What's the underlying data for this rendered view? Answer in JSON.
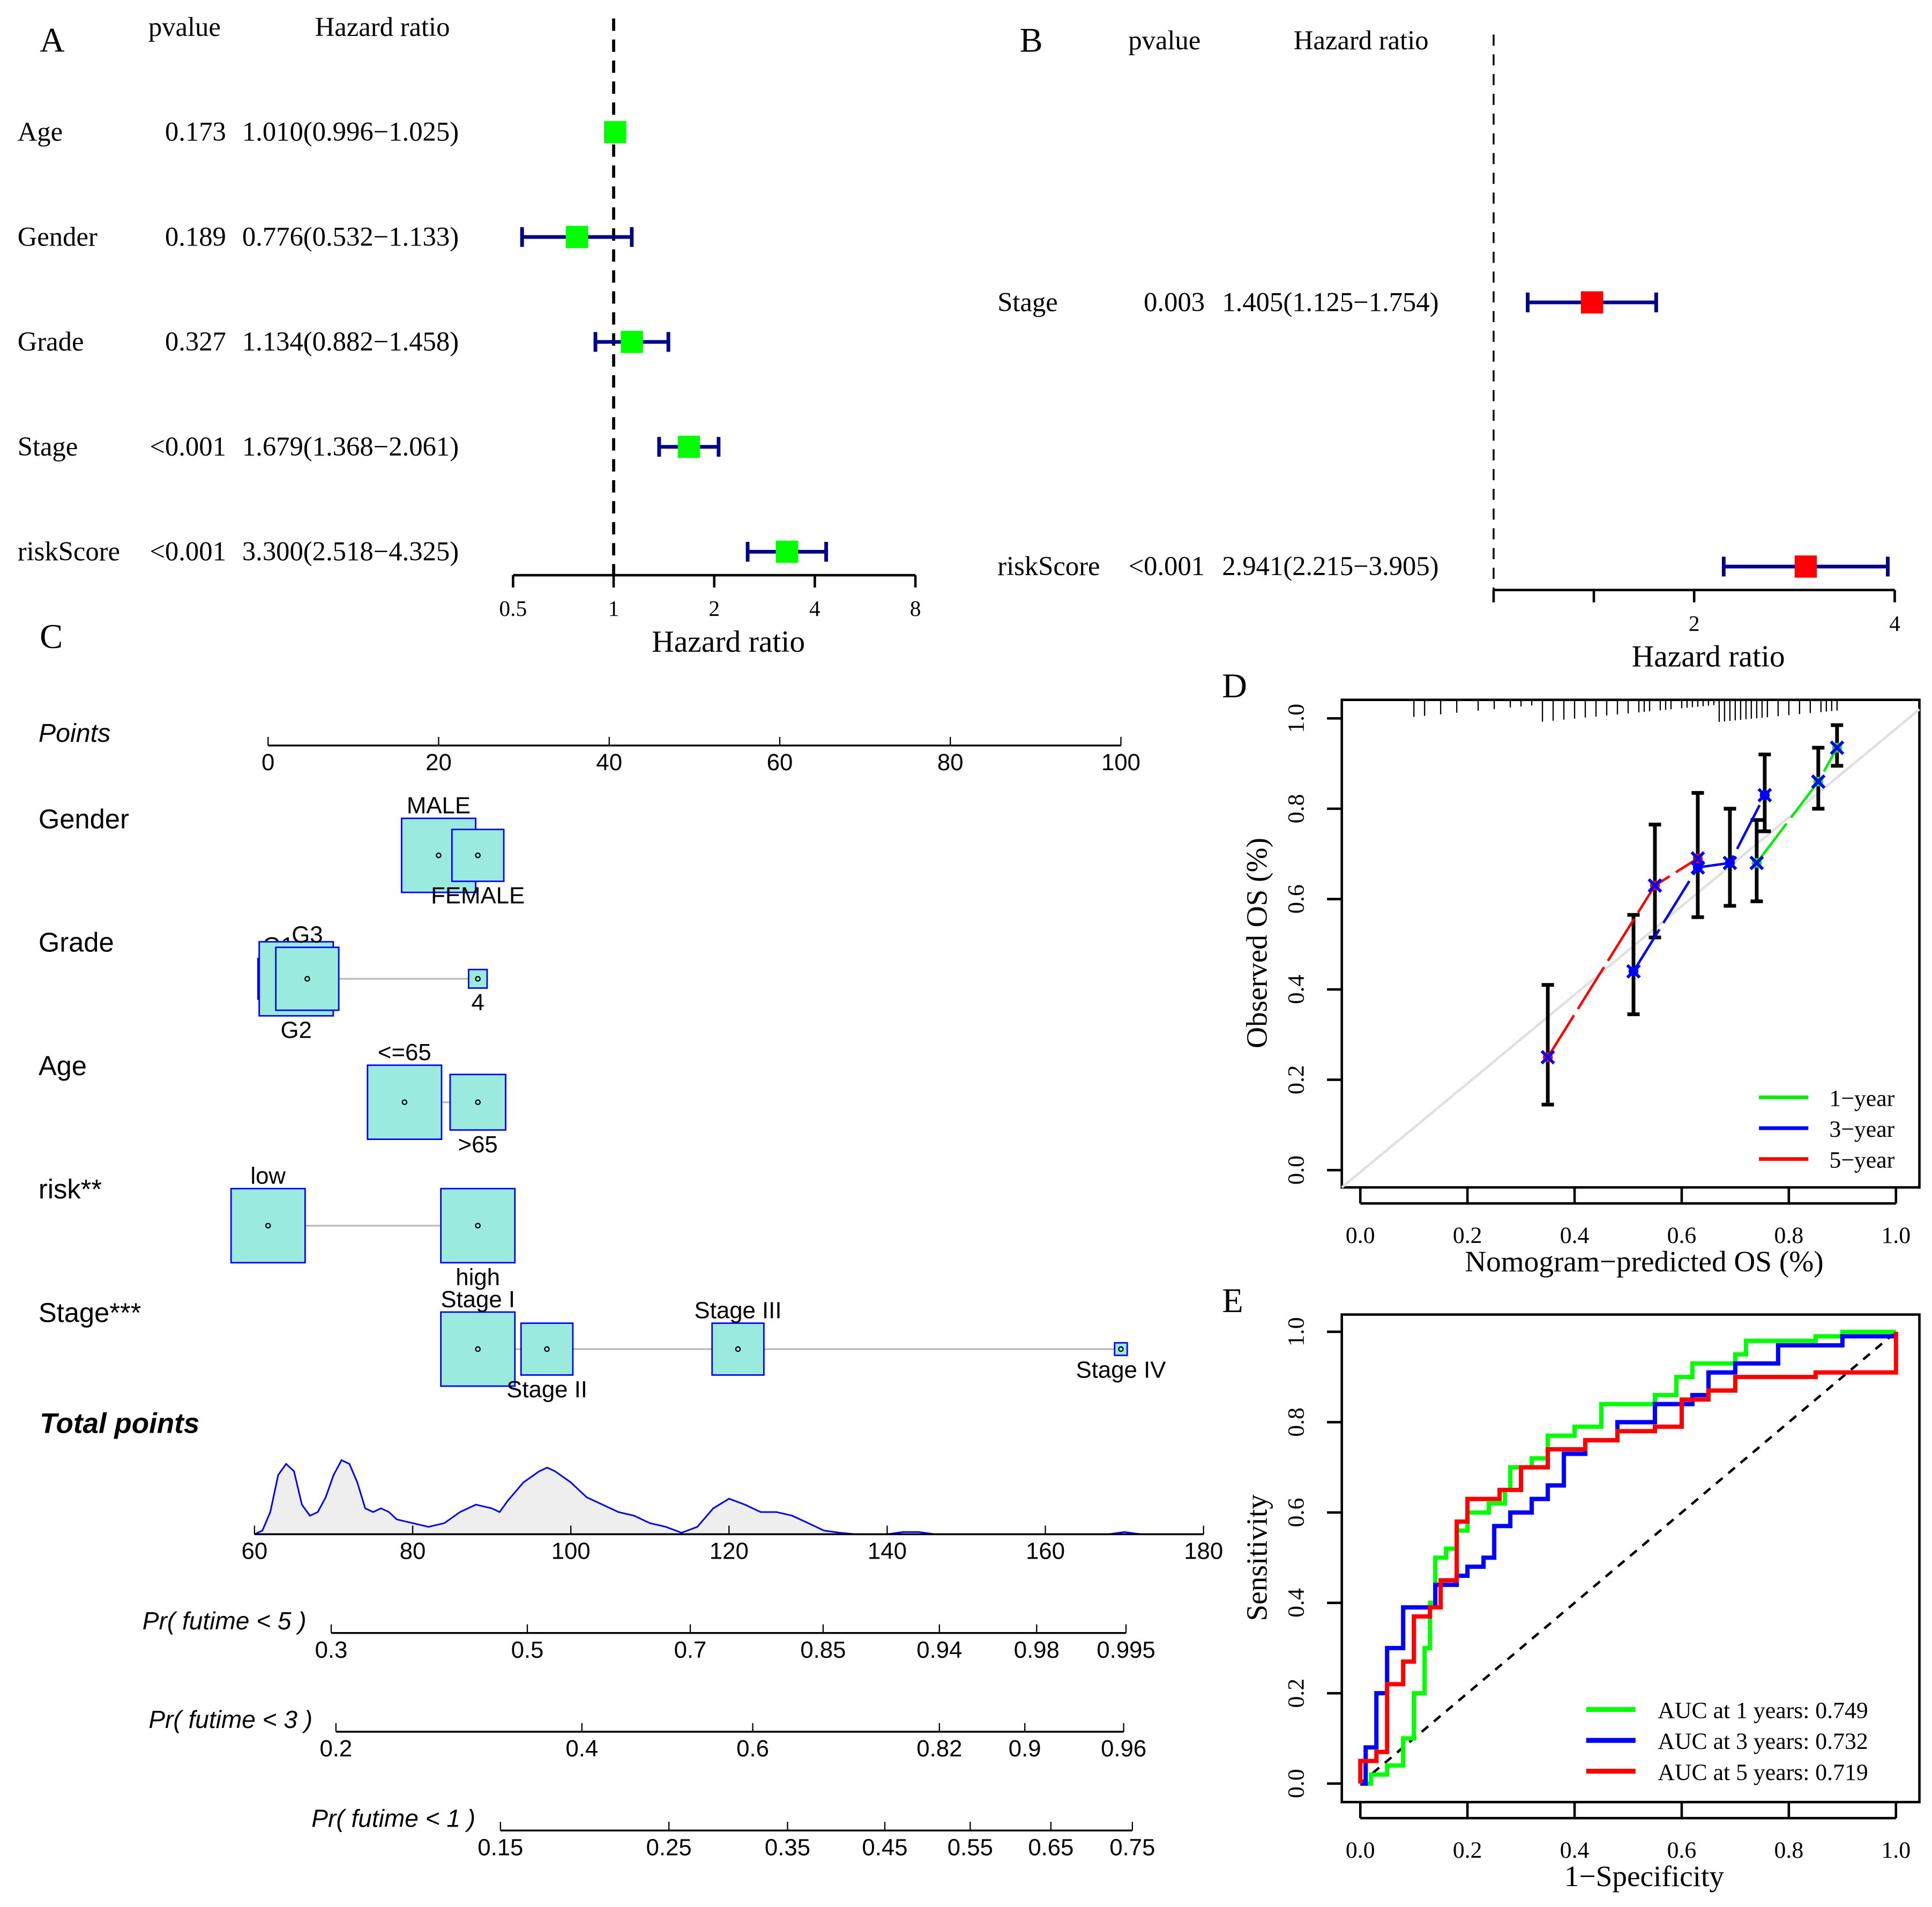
{
  "chart_data": [
    {
      "panel": "A",
      "type": "forest",
      "panel_label": "A",
      "col_headers": [
        "pvalue",
        "Hazard ratio"
      ],
      "xlabel": "Hazard ratio",
      "xscale": "log2",
      "xticks": [
        0.5,
        1,
        2,
        4,
        8
      ],
      "xtick_labels": [
        "0.5",
        "1",
        "2",
        "4",
        "8"
      ],
      "ref_line": 1,
      "marker_color": "#00ff00",
      "ci_color": "#00008b",
      "rows": [
        {
          "label": "Age",
          "pvalue": "0.173",
          "hr_text": "1.010(0.996−1.025)",
          "hr": 1.01,
          "lo": 0.996,
          "hi": 1.025
        },
        {
          "label": "Gender",
          "pvalue": "0.189",
          "hr_text": "0.776(0.532−1.133)",
          "hr": 0.776,
          "lo": 0.532,
          "hi": 1.133
        },
        {
          "label": "Grade",
          "pvalue": "0.327",
          "hr_text": "1.134(0.882−1.458)",
          "hr": 1.134,
          "lo": 0.882,
          "hi": 1.458
        },
        {
          "label": "Stage",
          "pvalue": "<0.001",
          "hr_text": "1.679(1.368−2.061)",
          "hr": 1.679,
          "lo": 1.368,
          "hi": 2.061
        },
        {
          "label": "riskScore",
          "pvalue": "<0.001",
          "hr_text": "3.300(2.518−4.325)",
          "hr": 3.3,
          "lo": 2.518,
          "hi": 4.325
        }
      ]
    },
    {
      "panel": "B",
      "type": "forest",
      "panel_label": "B",
      "col_headers": [
        "pvalue",
        "Hazard ratio"
      ],
      "xlabel": "Hazard ratio",
      "xscale": "log2",
      "xticks": [
        1,
        1.414,
        2,
        4
      ],
      "xtick_labels": [
        "",
        "",
        "2",
        "4"
      ],
      "ref_line": 1,
      "marker_color": "#ff0000",
      "ci_color": "#00008b",
      "rows": [
        {
          "label": "Stage",
          "pvalue": "0.003",
          "hr_text": "1.405(1.125−1.754)",
          "hr": 1.405,
          "lo": 1.125,
          "hi": 1.754
        },
        {
          "label": "riskScore",
          "pvalue": "<0.001",
          "hr_text": "2.941(2.215−3.905)",
          "hr": 2.941,
          "lo": 2.215,
          "hi": 3.905
        }
      ]
    },
    {
      "panel": "C",
      "type": "nomogram",
      "panel_label": "C",
      "points": {
        "label": "Points",
        "range": [
          0,
          100
        ],
        "ticks": [
          0,
          20,
          40,
          60,
          80,
          100
        ]
      },
      "variables": [
        {
          "label": "Gender",
          "levels": [
            {
              "name": "MALE",
              "points": 20,
              "size": 1.0,
              "pos": "above"
            },
            {
              "name": "FEMALE",
              "points": 24.6,
              "size": 0.7,
              "pos": "below"
            }
          ]
        },
        {
          "label": "Grade",
          "levels": [
            {
              "name": "G1",
              "points": 1.2,
              "size": 0.55,
              "pos": "above"
            },
            {
              "name": "G2",
              "points": 3.3,
              "size": 1.0,
              "pos": "below"
            },
            {
              "name": "G3",
              "points": 4.6,
              "size": 0.85,
              "pos": "above"
            },
            {
              "name": "4",
              "points": 24.6,
              "size": 0.25,
              "pos": "below"
            }
          ]
        },
        {
          "label": "Age",
          "levels": [
            {
              "name": "<=65",
              "points": 16,
              "size": 1.0,
              "pos": "above"
            },
            {
              "name": ">65",
              "points": 24.6,
              "size": 0.75,
              "pos": "below"
            }
          ]
        },
        {
          "label": "risk**",
          "levels": [
            {
              "name": "low",
              "points": 0,
              "size": 1.0,
              "pos": "above"
            },
            {
              "name": "high",
              "points": 24.6,
              "size": 1.0,
              "pos": "below"
            }
          ]
        },
        {
          "label": "Stage***",
          "levels": [
            {
              "name": "Stage I",
              "points": 24.6,
              "size": 1.0,
              "pos": "above"
            },
            {
              "name": "Stage II",
              "points": 32.7,
              "size": 0.7,
              "pos": "below"
            },
            {
              "name": "Stage III",
              "points": 55.1,
              "size": 0.7,
              "pos": "above"
            },
            {
              "name": "Stage IV",
              "points": 100,
              "size": 0.17,
              "pos": "below"
            }
          ]
        }
      ],
      "total_points": {
        "label": "Total points",
        "range": [
          60,
          180
        ],
        "ticks": [
          60,
          80,
          100,
          120,
          140,
          160,
          180
        ],
        "density": [
          [
            60,
            0
          ],
          [
            61,
            0.05
          ],
          [
            62,
            0.3
          ],
          [
            63,
            0.8
          ],
          [
            64,
            0.95
          ],
          [
            65,
            0.85
          ],
          [
            66,
            0.4
          ],
          [
            67,
            0.25
          ],
          [
            68,
            0.3
          ],
          [
            69,
            0.5
          ],
          [
            70,
            0.8
          ],
          [
            71,
            1.0
          ],
          [
            72,
            0.95
          ],
          [
            73,
            0.7
          ],
          [
            74,
            0.35
          ],
          [
            75,
            0.3
          ],
          [
            76,
            0.35
          ],
          [
            77,
            0.3
          ],
          [
            78,
            0.2
          ],
          [
            80,
            0.15
          ],
          [
            82,
            0.1
          ],
          [
            84,
            0.15
          ],
          [
            86,
            0.3
          ],
          [
            88,
            0.4
          ],
          [
            90,
            0.35
          ],
          [
            91,
            0.3
          ],
          [
            92,
            0.45
          ],
          [
            94,
            0.7
          ],
          [
            96,
            0.85
          ],
          [
            97,
            0.9
          ],
          [
            98,
            0.85
          ],
          [
            100,
            0.7
          ],
          [
            102,
            0.5
          ],
          [
            104,
            0.4
          ],
          [
            106,
            0.3
          ],
          [
            108,
            0.25
          ],
          [
            110,
            0.15
          ],
          [
            112,
            0.1
          ],
          [
            114,
            0.02
          ],
          [
            116,
            0.1
          ],
          [
            118,
            0.35
          ],
          [
            120,
            0.48
          ],
          [
            122,
            0.4
          ],
          [
            124,
            0.3
          ],
          [
            126,
            0.3
          ],
          [
            128,
            0.25
          ],
          [
            130,
            0.15
          ],
          [
            132,
            0.05
          ],
          [
            134,
            0.02
          ],
          [
            136,
            0
          ],
          [
            140,
            0
          ],
          [
            142,
            0.03
          ],
          [
            144,
            0.03
          ],
          [
            146,
            0
          ],
          [
            168,
            0
          ],
          [
            170,
            0.03
          ],
          [
            172,
            0
          ],
          [
            180,
            0
          ]
        ]
      },
      "prob_scales": [
        {
          "label": "Pr( futime < 5 )",
          "ticks": [
            {
              "v": "0.3",
              "tp": 69.7
            },
            {
              "v": "0.5",
              "tp": 94.5
            },
            {
              "v": "0.7",
              "tp": 115.1
            },
            {
              "v": "0.85",
              "tp": 131.9
            },
            {
              "v": "0.94",
              "tp": 146.6
            },
            {
              "v": "0.98",
              "tp": 158.9
            },
            {
              "v": "0.995",
              "tp": 170.2
            }
          ]
        },
        {
          "label": "Pr( futime < 3 )",
          "ticks": [
            {
              "v": "0.2",
              "tp": 70.3
            },
            {
              "v": "0.4",
              "tp": 101.4
            },
            {
              "v": "0.6",
              "tp": 123.0
            },
            {
              "v": "0.82",
              "tp": 146.6
            },
            {
              "v": "0.9",
              "tp": 157.4
            },
            {
              "v": "0.96",
              "tp": 169.9
            }
          ]
        },
        {
          "label": "Pr( futime < 1 )",
          "ticks": [
            {
              "v": "0.15",
              "tp": 91.1
            },
            {
              "v": "0.25",
              "tp": 112.4
            },
            {
              "v": "0.35",
              "tp": 127.4
            },
            {
              "v": "0.45",
              "tp": 139.7
            },
            {
              "v": "0.55",
              "tp": 150.5
            },
            {
              "v": "0.65",
              "tp": 160.7
            },
            {
              "v": "0.75",
              "tp": 171.0
            }
          ]
        }
      ]
    },
    {
      "panel": "D",
      "type": "line",
      "panel_label": "D",
      "title": "",
      "xlabel": "Nomogram−predicted OS (%)",
      "ylabel": "Observed OS (%)",
      "xlim": [
        0,
        1
      ],
      "ylim": [
        0,
        1
      ],
      "ticks": [
        "0.0",
        "0.2",
        "0.4",
        "0.6",
        "0.8",
        "1.0"
      ],
      "legend_position": "bottom-right",
      "series": [
        {
          "name": "1−year",
          "color": "#00ee00",
          "points": [
            [
              0.74,
              0.68
            ],
            [
              0.855,
              0.86
            ],
            [
              0.89,
              0.935
            ]
          ]
        },
        {
          "name": "3−year",
          "color": "#0000ff",
          "points": [
            [
              0.51,
              0.44
            ],
            [
              0.63,
              0.67
            ],
            [
              0.69,
              0.68
            ],
            [
              0.755,
              0.83
            ]
          ]
        },
        {
          "name": "5−year",
          "color": "#ff0000",
          "points": [
            [
              0.35,
              0.25
            ],
            [
              0.55,
              0.63
            ],
            [
              0.63,
              0.69
            ]
          ]
        }
      ],
      "error_bars": [
        [
          0.35,
          0.145,
          0.41
        ],
        [
          0.51,
          0.345,
          0.565
        ],
        [
          0.55,
          0.515,
          0.765
        ],
        [
          0.63,
          0.56,
          0.835
        ],
        [
          0.69,
          0.585,
          0.8
        ],
        [
          0.74,
          0.595,
          0.775
        ],
        [
          0.755,
          0.75,
          0.92
        ],
        [
          0.855,
          0.8,
          0.935
        ],
        [
          0.89,
          0.895,
          0.985
        ]
      ],
      "rug": [
        0.1,
        0.12,
        0.15,
        0.18,
        0.22,
        0.25,
        0.28,
        0.3,
        0.32,
        0.34,
        0.36,
        0.38,
        0.4,
        0.42,
        0.44,
        0.46,
        0.48,
        0.5,
        0.52,
        0.53,
        0.54,
        0.56,
        0.57,
        0.58,
        0.6,
        0.61,
        0.62,
        0.63,
        0.64,
        0.65,
        0.66,
        0.67,
        0.68,
        0.69,
        0.7,
        0.71,
        0.72,
        0.73,
        0.74,
        0.75,
        0.76,
        0.78,
        0.8,
        0.82,
        0.84,
        0.86,
        0.87,
        0.88,
        0.89
      ]
    },
    {
      "panel": "E",
      "type": "line",
      "panel_label": "E",
      "title": "",
      "xlabel": "1−Specificity",
      "ylabel": "Sensitivity",
      "xlim": [
        0,
        1
      ],
      "ylim": [
        0,
        1
      ],
      "ticks": [
        "0.0",
        "0.2",
        "0.4",
        "0.6",
        "0.8",
        "1.0"
      ],
      "legend_position": "bottom-right",
      "series": [
        {
          "name": "AUC at 1 years: 0.749",
          "auc": 0.749,
          "color": "#00ff00",
          "points": [
            [
              0,
              0
            ],
            [
              0.02,
              0.02
            ],
            [
              0.05,
              0.04
            ],
            [
              0.08,
              0.1
            ],
            [
              0.1,
              0.2
            ],
            [
              0.12,
              0.3
            ],
            [
              0.13,
              0.4
            ],
            [
              0.14,
              0.5
            ],
            [
              0.16,
              0.52
            ],
            [
              0.18,
              0.56
            ],
            [
              0.2,
              0.6
            ],
            [
              0.24,
              0.62
            ],
            [
              0.27,
              0.65
            ],
            [
              0.28,
              0.7
            ],
            [
              0.32,
              0.72
            ],
            [
              0.35,
              0.77
            ],
            [
              0.4,
              0.79
            ],
            [
              0.45,
              0.84
            ],
            [
              0.5,
              0.84
            ],
            [
              0.55,
              0.86
            ],
            [
              0.59,
              0.9
            ],
            [
              0.62,
              0.93
            ],
            [
              0.7,
              0.95
            ],
            [
              0.72,
              0.98
            ],
            [
              0.85,
              0.99
            ],
            [
              0.9,
              1
            ],
            [
              1,
              1
            ]
          ]
        },
        {
          "name": "AUC at 3 years: 0.732",
          "auc": 0.732,
          "color": "#0000ff",
          "points": [
            [
              0,
              0
            ],
            [
              0.01,
              0.08
            ],
            [
              0.03,
              0.2
            ],
            [
              0.05,
              0.3
            ],
            [
              0.08,
              0.39
            ],
            [
              0.12,
              0.39
            ],
            [
              0.14,
              0.44
            ],
            [
              0.18,
              0.46
            ],
            [
              0.2,
              0.48
            ],
            [
              0.23,
              0.5
            ],
            [
              0.25,
              0.57
            ],
            [
              0.28,
              0.6
            ],
            [
              0.32,
              0.63
            ],
            [
              0.35,
              0.66
            ],
            [
              0.38,
              0.73
            ],
            [
              0.42,
              0.76
            ],
            [
              0.48,
              0.8
            ],
            [
              0.55,
              0.84
            ],
            [
              0.62,
              0.86
            ],
            [
              0.65,
              0.91
            ],
            [
              0.7,
              0.93
            ],
            [
              0.78,
              0.97
            ],
            [
              0.9,
              0.99
            ],
            [
              1,
              1
            ]
          ]
        },
        {
          "name": "AUC at 5 years: 0.719",
          "auc": 0.719,
          "color": "#ff0000",
          "points": [
            [
              0,
              0
            ],
            [
              0,
              0.05
            ],
            [
              0.03,
              0.07
            ],
            [
              0.05,
              0.22
            ],
            [
              0.08,
              0.27
            ],
            [
              0.1,
              0.37
            ],
            [
              0.13,
              0.39
            ],
            [
              0.15,
              0.45
            ],
            [
              0.18,
              0.58
            ],
            [
              0.2,
              0.63
            ],
            [
              0.26,
              0.65
            ],
            [
              0.3,
              0.7
            ],
            [
              0.35,
              0.74
            ],
            [
              0.42,
              0.76
            ],
            [
              0.48,
              0.78
            ],
            [
              0.55,
              0.79
            ],
            [
              0.6,
              0.85
            ],
            [
              0.65,
              0.87
            ],
            [
              0.7,
              0.9
            ],
            [
              0.85,
              0.91
            ],
            [
              1,
              1
            ]
          ]
        }
      ]
    }
  ]
}
